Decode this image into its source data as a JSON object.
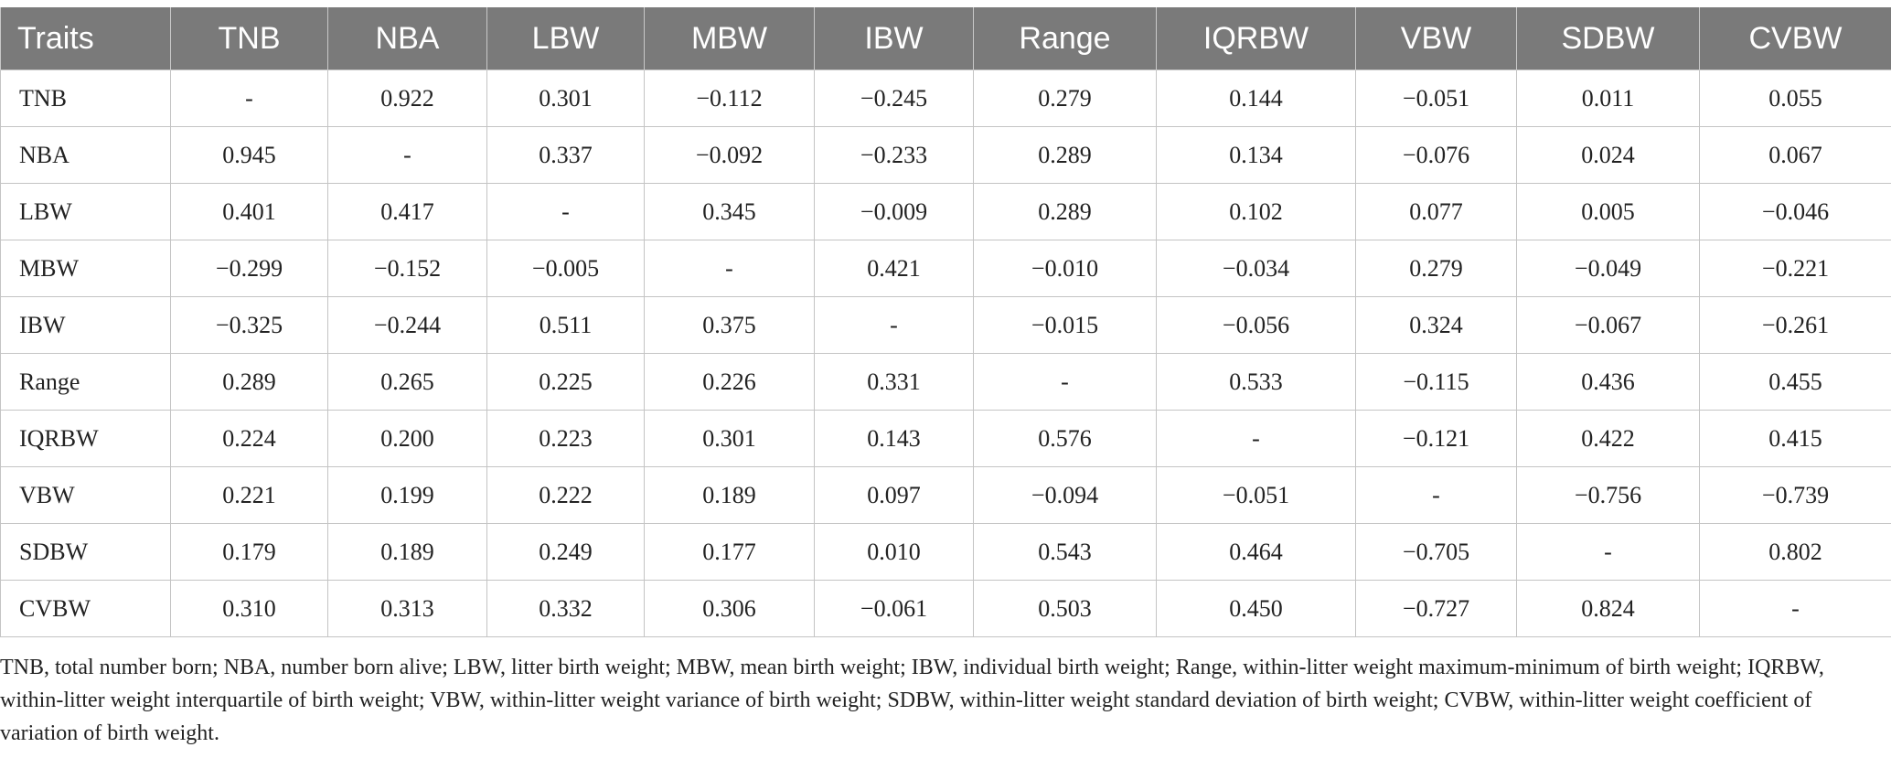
{
  "table": {
    "headers": [
      "Traits",
      "TNB",
      "NBA",
      "LBW",
      "MBW",
      "IBW",
      "Range",
      "IQRBW",
      "VBW",
      "SDBW",
      "CVBW"
    ],
    "rows": [
      [
        "TNB",
        "-",
        "0.922",
        "0.301",
        "−0.112",
        "−0.245",
        "0.279",
        "0.144",
        "−0.051",
        "0.011",
        "0.055"
      ],
      [
        "NBA",
        "0.945",
        "-",
        "0.337",
        "−0.092",
        "−0.233",
        "0.289",
        "0.134",
        "−0.076",
        "0.024",
        "0.067"
      ],
      [
        "LBW",
        "0.401",
        "0.417",
        "-",
        "0.345",
        "−0.009",
        "0.289",
        "0.102",
        "0.077",
        "0.005",
        "−0.046"
      ],
      [
        "MBW",
        "−0.299",
        "−0.152",
        "−0.005",
        "-",
        "0.421",
        "−0.010",
        "−0.034",
        "0.279",
        "−0.049",
        "−0.221"
      ],
      [
        "IBW",
        "−0.325",
        "−0.244",
        "0.511",
        "0.375",
        "-",
        "−0.015",
        "−0.056",
        "0.324",
        "−0.067",
        "−0.261"
      ],
      [
        "Range",
        "0.289",
        "0.265",
        "0.225",
        "0.226",
        "0.331",
        "-",
        "0.533",
        "−0.115",
        "0.436",
        "0.455"
      ],
      [
        "IQRBW",
        "0.224",
        "0.200",
        "0.223",
        "0.301",
        "0.143",
        "0.576",
        "-",
        "−0.121",
        "0.422",
        "0.415"
      ],
      [
        "VBW",
        "0.221",
        "0.199",
        "0.222",
        "0.189",
        "0.097",
        "−0.094",
        "−0.051",
        "-",
        "−0.756",
        "−0.739"
      ],
      [
        "SDBW",
        "0.179",
        "0.189",
        "0.249",
        "0.177",
        "0.010",
        "0.543",
        "0.464",
        "−0.705",
        "-",
        "0.802"
      ],
      [
        "CVBW",
        "0.310",
        "0.313",
        "0.332",
        "0.306",
        "−0.061",
        "0.503",
        "0.450",
        "−0.727",
        "0.824",
        "-"
      ]
    ]
  },
  "footnote": "TNB, total number born; NBA, number born alive; LBW, litter birth weight; MBW, mean birth weight; IBW, individual birth weight; Range, within-litter weight maximum-minimum of birth weight; IQRBW, within-litter weight interquartile of birth weight; VBW, within-litter weight variance of birth weight; SDBW, within-litter weight standard deviation of birth weight; CVBW, within-litter weight coefficient of variation of birth weight."
}
